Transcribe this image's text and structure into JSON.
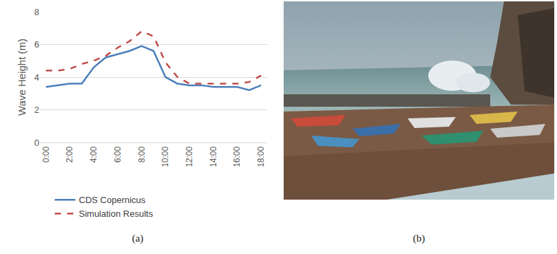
{
  "chart_data": {
    "type": "line",
    "caption": "(a)",
    "y_label": "Wave Height (m)",
    "categories": [
      "0:00",
      null,
      "2:00",
      null,
      "4:00",
      null,
      "6:00",
      null,
      "8:00",
      null,
      "10:00",
      null,
      "12:00",
      null,
      "14:00",
      null,
      "16:00",
      null,
      "18:00"
    ],
    "series": [
      {
        "name": "CDS Copernicus",
        "color": "#4a7ebb",
        "line_style": "solid",
        "values": [
          3.4,
          3.5,
          3.6,
          3.6,
          4.6,
          5.2,
          5.4,
          5.6,
          5.9,
          5.6,
          4.0,
          3.6,
          3.5,
          3.5,
          3.4,
          3.4,
          3.4,
          3.2,
          3.5
        ]
      },
      {
        "name": "Simulation Results",
        "color": "#be4b48",
        "line_style": "dash",
        "values": [
          4.4,
          4.4,
          4.5,
          4.8,
          5.0,
          5.3,
          5.8,
          6.2,
          6.8,
          6.5,
          4.9,
          4.0,
          3.6,
          3.6,
          3.6,
          3.6,
          3.6,
          3.7,
          4.1
        ]
      }
    ],
    "ylim": [
      0,
      8
    ],
    "yticks": [
      0,
      2,
      4,
      6,
      8
    ],
    "grid": true,
    "legend": "bottom"
  },
  "photo": {
    "caption": "(b)"
  }
}
